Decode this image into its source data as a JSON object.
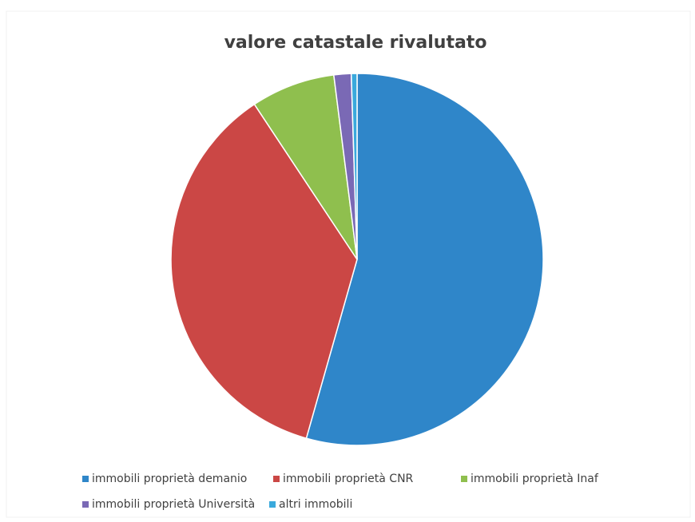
{
  "chart_data": {
    "type": "pie",
    "title": "valore catastale rivalutato",
    "categories": [
      "immobili proprietà demanio",
      "immobili proprietà CNR",
      "immobili proprietà Inaf",
      "immobili proprietà Università",
      "altri immobili"
    ],
    "values": [
      54.4,
      36.3,
      7.3,
      1.5,
      0.5
    ],
    "colors": [
      "#2f86c9",
      "#cb4745",
      "#8fbf4e",
      "#7a69b5",
      "#3aa9dc"
    ],
    "legend": "bottom"
  }
}
